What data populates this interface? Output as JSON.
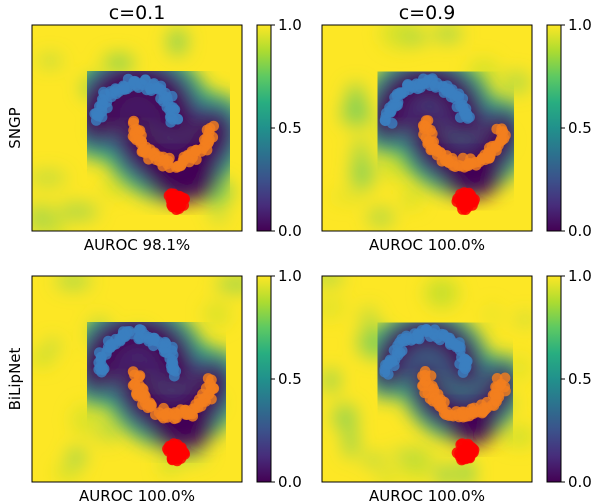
{
  "colors": {
    "viridis": [
      "#440154",
      "#472d7b",
      "#3b528b",
      "#2c728e",
      "#21918c",
      "#28ae80",
      "#5ec962",
      "#addc30",
      "#fde725"
    ],
    "class_0": "#3a7fc0",
    "class_1": "#f37f1e",
    "ood": "#ff0000",
    "frame": "#000000"
  },
  "chart_data": [
    {
      "type": "heatmap",
      "row_label": "SNGP",
      "col_title": "c=0.1",
      "caption": "AUROC 98.1%",
      "colorbar": {
        "range": [
          0.0,
          1.0
        ],
        "ticks": [
          "0.0",
          "0.5",
          "1.0"
        ]
      },
      "auroc_percent": 98.1,
      "band_width": 1.0,
      "noise": 0.1
    },
    {
      "type": "heatmap",
      "row_label": "",
      "col_title": "c=0.9",
      "caption": "AUROC 100.0%",
      "colorbar": {
        "range": [
          0.0,
          1.0
        ],
        "ticks": [
          "0.0",
          "0.5",
          "1.0"
        ]
      },
      "auroc_percent": 100.0,
      "band_width": 0.85,
      "noise": 0.15
    },
    {
      "type": "heatmap",
      "row_label": "BiLipNet",
      "col_title": "",
      "caption": "AUROC 100.0%",
      "colorbar": {
        "range": [
          0.0,
          1.0
        ],
        "ticks": [
          "0.0",
          "0.5",
          "1.0"
        ]
      },
      "auroc_percent": 100.0,
      "band_width": 0.9,
      "noise": 0.1
    },
    {
      "type": "heatmap",
      "row_label": "",
      "col_title": "",
      "caption": "AUROC 100.0%",
      "colorbar": {
        "range": [
          0.0,
          1.0
        ],
        "ticks": [
          "0.0",
          "0.5",
          "1.0"
        ]
      },
      "auroc_percent": 100.0,
      "band_width": 0.7,
      "noise": 0.3
    }
  ]
}
